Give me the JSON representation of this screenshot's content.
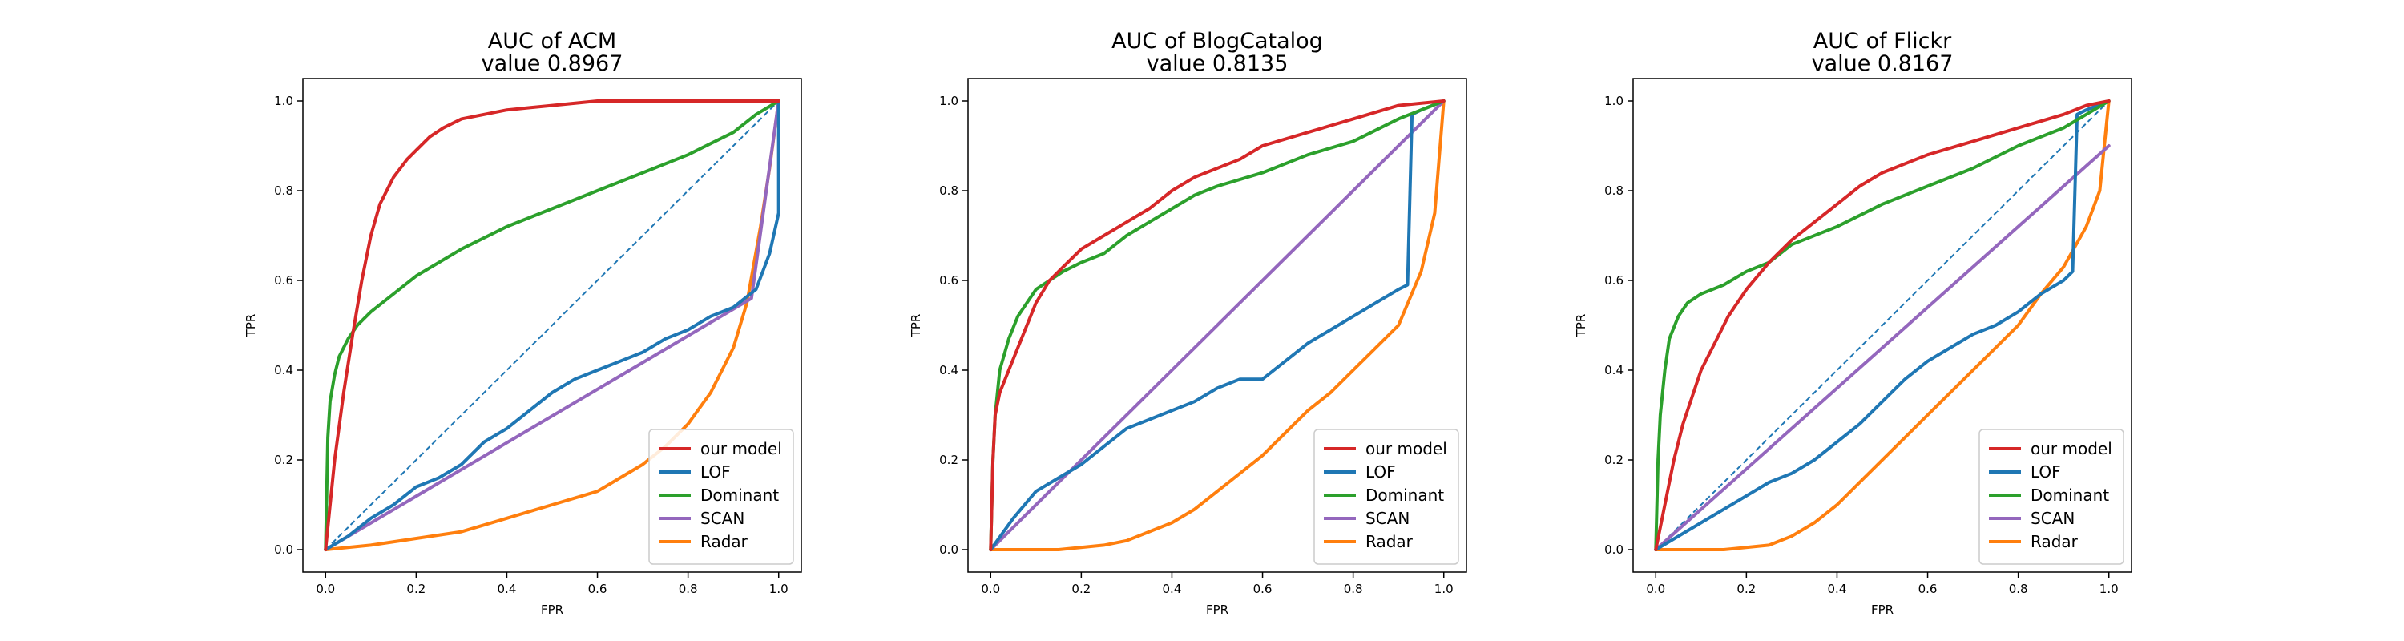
{
  "colors": {
    "our_model": "#d62728",
    "lof": "#1f77b4",
    "dominant": "#2ca02c",
    "scan": "#9467bd",
    "radar": "#ff7f0e",
    "diagonal": "#1f77b4"
  },
  "chart_data": [
    {
      "type": "line",
      "title": "AUC of ACM",
      "subtitle": "value 0.8967",
      "xlabel": "FPR",
      "ylabel": "TPR",
      "xlim": [
        -0.05,
        1.05
      ],
      "ylim": [
        -0.05,
        1.05
      ],
      "xticks": [
        "0.0",
        "0.2",
        "0.4",
        "0.6",
        "0.8",
        "1.0"
      ],
      "yticks": [
        "0.0",
        "0.2",
        "0.4",
        "0.6",
        "0.8",
        "1.0"
      ],
      "grid": false,
      "legend_position": "lower-right",
      "reference_line": {
        "style": "dashed",
        "x": [
          0,
          1
        ],
        "y": [
          0,
          1
        ]
      },
      "series": [
        {
          "name": "our model",
          "color_key": "our_model",
          "x": [
            0,
            0.02,
            0.04,
            0.06,
            0.08,
            0.1,
            0.12,
            0.15,
            0.18,
            0.2,
            0.23,
            0.26,
            0.3,
            0.35,
            0.4,
            0.45,
            0.5,
            0.6,
            0.7,
            0.8,
            0.9,
            1.0
          ],
          "y": [
            0,
            0.2,
            0.35,
            0.48,
            0.6,
            0.7,
            0.77,
            0.83,
            0.87,
            0.89,
            0.92,
            0.94,
            0.96,
            0.97,
            0.98,
            0.985,
            0.99,
            1.0,
            1.0,
            1.0,
            1.0,
            1.0
          ]
        },
        {
          "name": "LOF",
          "color_key": "lof",
          "x": [
            0,
            0.05,
            0.1,
            0.15,
            0.2,
            0.25,
            0.3,
            0.35,
            0.4,
            0.45,
            0.5,
            0.55,
            0.6,
            0.65,
            0.7,
            0.75,
            0.8,
            0.85,
            0.9,
            0.95,
            0.98,
            1.0,
            1.0
          ],
          "y": [
            0,
            0.03,
            0.07,
            0.1,
            0.14,
            0.16,
            0.19,
            0.24,
            0.27,
            0.31,
            0.35,
            0.38,
            0.4,
            0.42,
            0.44,
            0.47,
            0.49,
            0.52,
            0.54,
            0.58,
            0.66,
            0.75,
            1.0
          ]
        },
        {
          "name": "Dominant",
          "color_key": "dominant",
          "x": [
            0,
            0.005,
            0.01,
            0.02,
            0.03,
            0.05,
            0.07,
            0.1,
            0.15,
            0.2,
            0.25,
            0.3,
            0.4,
            0.5,
            0.6,
            0.7,
            0.8,
            0.9,
            0.95,
            1.0
          ],
          "y": [
            0,
            0.25,
            0.33,
            0.39,
            0.43,
            0.47,
            0.5,
            0.53,
            0.57,
            0.61,
            0.64,
            0.67,
            0.72,
            0.76,
            0.8,
            0.84,
            0.88,
            0.93,
            0.97,
            1.0
          ]
        },
        {
          "name": "SCAN",
          "color_key": "scan",
          "x": [
            0,
            0.94,
            1.0
          ],
          "y": [
            0,
            0.56,
            1.0
          ]
        },
        {
          "name": "Radar",
          "color_key": "radar",
          "x": [
            0,
            0.1,
            0.2,
            0.3,
            0.4,
            0.5,
            0.6,
            0.65,
            0.7,
            0.75,
            0.8,
            0.85,
            0.9,
            0.93,
            0.96,
            0.98,
            1.0
          ],
          "y": [
            0,
            0.01,
            0.025,
            0.04,
            0.07,
            0.1,
            0.13,
            0.16,
            0.19,
            0.23,
            0.28,
            0.35,
            0.45,
            0.55,
            0.72,
            0.85,
            1.0
          ]
        }
      ]
    },
    {
      "type": "line",
      "title": "AUC of BlogCatalog",
      "subtitle": "value 0.8135",
      "xlabel": "FPR",
      "ylabel": "TPR",
      "xlim": [
        -0.05,
        1.05
      ],
      "ylim": [
        -0.05,
        1.05
      ],
      "xticks": [
        "0.0",
        "0.2",
        "0.4",
        "0.6",
        "0.8",
        "1.0"
      ],
      "yticks": [
        "0.0",
        "0.2",
        "0.4",
        "0.6",
        "0.8",
        "1.0"
      ],
      "grid": false,
      "legend_position": "lower-right",
      "reference_line": null,
      "series": [
        {
          "name": "our model",
          "color_key": "our_model",
          "x": [
            0,
            0.005,
            0.01,
            0.02,
            0.04,
            0.06,
            0.08,
            0.1,
            0.13,
            0.16,
            0.2,
            0.25,
            0.3,
            0.35,
            0.4,
            0.45,
            0.5,
            0.55,
            0.6,
            0.7,
            0.8,
            0.9,
            1.0
          ],
          "y": [
            0,
            0.2,
            0.3,
            0.35,
            0.4,
            0.45,
            0.5,
            0.55,
            0.6,
            0.63,
            0.67,
            0.7,
            0.73,
            0.76,
            0.8,
            0.83,
            0.85,
            0.87,
            0.9,
            0.93,
            0.96,
            0.99,
            1.0
          ]
        },
        {
          "name": "LOF",
          "color_key": "lof",
          "x": [
            0,
            0.05,
            0.1,
            0.15,
            0.2,
            0.25,
            0.3,
            0.35,
            0.4,
            0.45,
            0.5,
            0.55,
            0.6,
            0.65,
            0.7,
            0.75,
            0.8,
            0.85,
            0.9,
            0.92,
            0.93,
            0.95,
            1.0
          ],
          "y": [
            0,
            0.07,
            0.13,
            0.16,
            0.19,
            0.23,
            0.27,
            0.29,
            0.31,
            0.33,
            0.36,
            0.38,
            0.38,
            0.42,
            0.46,
            0.49,
            0.52,
            0.55,
            0.58,
            0.59,
            0.97,
            0.98,
            1.0
          ]
        },
        {
          "name": "Dominant",
          "color_key": "dominant",
          "x": [
            0,
            0.005,
            0.01,
            0.02,
            0.04,
            0.06,
            0.08,
            0.1,
            0.13,
            0.16,
            0.2,
            0.25,
            0.3,
            0.35,
            0.4,
            0.45,
            0.5,
            0.6,
            0.7,
            0.8,
            0.9,
            0.95,
            1.0
          ],
          "y": [
            0,
            0.2,
            0.3,
            0.4,
            0.47,
            0.52,
            0.55,
            0.58,
            0.6,
            0.62,
            0.64,
            0.66,
            0.7,
            0.73,
            0.76,
            0.79,
            0.81,
            0.84,
            0.88,
            0.91,
            0.96,
            0.98,
            1.0
          ]
        },
        {
          "name": "SCAN",
          "color_key": "scan",
          "x": [
            0,
            1.0
          ],
          "y": [
            0,
            1.0
          ]
        },
        {
          "name": "Radar",
          "color_key": "radar",
          "x": [
            0,
            0.15,
            0.25,
            0.3,
            0.35,
            0.4,
            0.45,
            0.5,
            0.55,
            0.6,
            0.65,
            0.7,
            0.75,
            0.8,
            0.85,
            0.9,
            0.95,
            0.98,
            1.0
          ],
          "y": [
            0,
            0.0,
            0.01,
            0.02,
            0.04,
            0.06,
            0.09,
            0.13,
            0.17,
            0.21,
            0.26,
            0.31,
            0.35,
            0.4,
            0.45,
            0.5,
            0.62,
            0.75,
            1.0
          ]
        }
      ]
    },
    {
      "type": "line",
      "title": "AUC of Flickr",
      "subtitle": "value 0.8167",
      "xlabel": "FPR",
      "ylabel": "TPR",
      "xlim": [
        -0.05,
        1.05
      ],
      "ylim": [
        -0.05,
        1.05
      ],
      "xticks": [
        "0.0",
        "0.2",
        "0.4",
        "0.6",
        "0.8",
        "1.0"
      ],
      "yticks": [
        "0.0",
        "0.2",
        "0.4",
        "0.6",
        "0.8",
        "1.0"
      ],
      "grid": false,
      "legend_position": "lower-right",
      "reference_line": {
        "style": "dashed",
        "x": [
          0,
          1
        ],
        "y": [
          0,
          1
        ]
      },
      "series": [
        {
          "name": "our model",
          "color_key": "our_model",
          "x": [
            0,
            0.02,
            0.04,
            0.06,
            0.08,
            0.1,
            0.13,
            0.16,
            0.2,
            0.25,
            0.3,
            0.35,
            0.4,
            0.45,
            0.5,
            0.6,
            0.7,
            0.8,
            0.9,
            0.95,
            1.0
          ],
          "y": [
            0,
            0.1,
            0.2,
            0.28,
            0.34,
            0.4,
            0.46,
            0.52,
            0.58,
            0.64,
            0.69,
            0.73,
            0.77,
            0.81,
            0.84,
            0.88,
            0.91,
            0.94,
            0.97,
            0.99,
            1.0
          ]
        },
        {
          "name": "LOF",
          "color_key": "lof",
          "x": [
            0,
            0.1,
            0.2,
            0.25,
            0.3,
            0.35,
            0.4,
            0.45,
            0.5,
            0.55,
            0.6,
            0.65,
            0.7,
            0.75,
            0.8,
            0.85,
            0.9,
            0.92,
            0.93,
            0.95,
            1.0
          ],
          "y": [
            0,
            0.06,
            0.12,
            0.15,
            0.17,
            0.2,
            0.24,
            0.28,
            0.33,
            0.38,
            0.42,
            0.45,
            0.48,
            0.5,
            0.53,
            0.57,
            0.6,
            0.62,
            0.97,
            0.98,
            1.0
          ]
        },
        {
          "name": "Dominant",
          "color_key": "dominant",
          "x": [
            0,
            0.005,
            0.01,
            0.02,
            0.03,
            0.05,
            0.07,
            0.1,
            0.15,
            0.2,
            0.25,
            0.3,
            0.4,
            0.5,
            0.6,
            0.7,
            0.8,
            0.9,
            0.95,
            1.0
          ],
          "y": [
            0,
            0.2,
            0.3,
            0.4,
            0.47,
            0.52,
            0.55,
            0.57,
            0.59,
            0.62,
            0.64,
            0.68,
            0.72,
            0.77,
            0.81,
            0.85,
            0.9,
            0.94,
            0.97,
            1.0
          ]
        },
        {
          "name": "SCAN",
          "color_key": "scan",
          "x": [
            0,
            1.0
          ],
          "y": [
            0,
            0.9
          ]
        },
        {
          "name": "Radar",
          "color_key": "radar",
          "x": [
            0,
            0.15,
            0.25,
            0.3,
            0.35,
            0.4,
            0.45,
            0.5,
            0.55,
            0.6,
            0.65,
            0.7,
            0.75,
            0.8,
            0.85,
            0.9,
            0.95,
            0.98,
            1.0
          ],
          "y": [
            0,
            0.0,
            0.01,
            0.03,
            0.06,
            0.1,
            0.15,
            0.2,
            0.25,
            0.3,
            0.35,
            0.4,
            0.45,
            0.5,
            0.57,
            0.63,
            0.72,
            0.8,
            1.0
          ]
        }
      ]
    }
  ]
}
